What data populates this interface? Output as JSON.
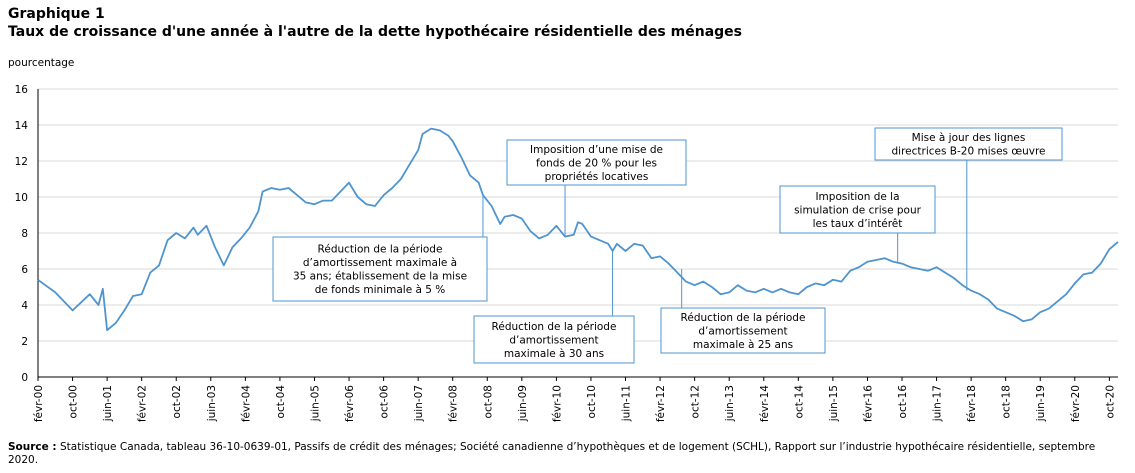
{
  "header": {
    "graph_no": "Graphique 1",
    "title": "Taux de croissance d'une année à l'autre de la dette hypothécaire résidentielle des ménages",
    "y_axis_label": "pourcentage"
  },
  "source": {
    "label": "Source :",
    "text": "Statistique Canada, tableau 36-10-0639-01, Passifs de crédit des ménages; Société canadienne d’hypothèques et de logement (SCHL), Rapport sur l’industrie hypothécaire résidentielle, septembre 2020."
  },
  "chart_data": {
    "type": "line",
    "title": "Taux de croissance d'une année à l'autre de la dette hypothécaire résidentielle des ménages",
    "ylabel": "pourcentage",
    "ylim": [
      0,
      16
    ],
    "yticks": [
      0,
      2,
      4,
      6,
      8,
      10,
      12,
      14,
      16
    ],
    "grid": true,
    "line_color": "#4e94cf",
    "x_tick_labels": [
      "févr-00",
      "oct-00",
      "juin-01",
      "févr-02",
      "oct-02",
      "juin-03",
      "févr-04",
      "oct-04",
      "juin-05",
      "févr-06",
      "oct-06",
      "juin-07",
      "févr-08",
      "oct-08",
      "juin-09",
      "févr-10",
      "oct-10",
      "juin-11",
      "févr-12",
      "oct-12",
      "juin-13",
      "févr-14",
      "oct-14",
      "juin-15",
      "févr-16",
      "oct-16",
      "juin-17",
      "févr-18",
      "oct-18",
      "juin-19",
      "févr-20",
      "oct-20"
    ],
    "series": [
      {
        "points": [
          [
            "févr-00",
            5.4
          ],
          [
            "juin-00",
            4.7
          ],
          [
            "oct-00",
            3.7
          ],
          [
            "févr-01",
            4.6
          ],
          [
            "avr-01",
            4.0
          ],
          [
            "mai-01",
            4.9
          ],
          [
            "juin-01",
            2.6
          ],
          [
            "août-01",
            3.0
          ],
          [
            "oct-01",
            3.7
          ],
          [
            "déc-01",
            4.5
          ],
          [
            "févr-02",
            4.6
          ],
          [
            "avr-02",
            5.8
          ],
          [
            "juin-02",
            6.2
          ],
          [
            "août-02",
            7.6
          ],
          [
            "oct-02",
            8.0
          ],
          [
            "déc-02",
            7.7
          ],
          [
            "févr-03",
            8.3
          ],
          [
            "mars-03",
            7.9
          ],
          [
            "mai-03",
            8.4
          ],
          [
            "juil-03",
            7.2
          ],
          [
            "sept-03",
            6.2
          ],
          [
            "nov-03",
            7.2
          ],
          [
            "janv-04",
            7.7
          ],
          [
            "mars-04",
            8.3
          ],
          [
            "mai-04",
            9.2
          ],
          [
            "juin-04",
            10.3
          ],
          [
            "août-04",
            10.5
          ],
          [
            "oct-04",
            10.4
          ],
          [
            "déc-04",
            10.5
          ],
          [
            "févr-05",
            10.1
          ],
          [
            "avr-05",
            9.7
          ],
          [
            "juin-05",
            9.6
          ],
          [
            "août-05",
            9.8
          ],
          [
            "oct-05",
            9.8
          ],
          [
            "déc-05",
            10.3
          ],
          [
            "févr-06",
            10.8
          ],
          [
            "avr-06",
            10.0
          ],
          [
            "juin-06",
            9.6
          ],
          [
            "août-06",
            9.5
          ],
          [
            "oct-06",
            10.1
          ],
          [
            "déc-06",
            10.5
          ],
          [
            "févr-07",
            11.0
          ],
          [
            "avr-07",
            11.8
          ],
          [
            "juin-07",
            12.6
          ],
          [
            "juil-07",
            13.5
          ],
          [
            "sept-07",
            13.8
          ],
          [
            "nov-07",
            13.7
          ],
          [
            "janv-08",
            13.4
          ],
          [
            "févr-08",
            13.1
          ],
          [
            "avr-08",
            12.2
          ],
          [
            "juin-08",
            11.2
          ],
          [
            "août-08",
            10.8
          ],
          [
            "sept-08",
            10.1
          ],
          [
            "nov-08",
            9.5
          ],
          [
            "janv-09",
            8.5
          ],
          [
            "févr-09",
            8.9
          ],
          [
            "avr-09",
            9.0
          ],
          [
            "juin-09",
            8.8
          ],
          [
            "août-09",
            8.1
          ],
          [
            "oct-09",
            7.7
          ],
          [
            "déc-09",
            7.9
          ],
          [
            "févr-10",
            8.4
          ],
          [
            "avr-10",
            7.8
          ],
          [
            "juin-10",
            7.9
          ],
          [
            "juil-10",
            8.6
          ],
          [
            "août-10",
            8.5
          ],
          [
            "oct-10",
            7.8
          ],
          [
            "déc-10",
            7.6
          ],
          [
            "févr-11",
            7.4
          ],
          [
            "mars-11",
            7.0
          ],
          [
            "avr-11",
            7.4
          ],
          [
            "juin-11",
            7.0
          ],
          [
            "août-11",
            7.4
          ],
          [
            "oct-11",
            7.3
          ],
          [
            "déc-11",
            6.6
          ],
          [
            "févr-12",
            6.7
          ],
          [
            "avr-12",
            6.3
          ],
          [
            "juin-12",
            5.8
          ],
          [
            "août-12",
            5.3
          ],
          [
            "oct-12",
            5.1
          ],
          [
            "déc-12",
            5.3
          ],
          [
            "févr-13",
            5.0
          ],
          [
            "avr-13",
            4.6
          ],
          [
            "juin-13",
            4.7
          ],
          [
            "août-13",
            5.1
          ],
          [
            "oct-13",
            4.8
          ],
          [
            "déc-13",
            4.7
          ],
          [
            "févr-14",
            4.9
          ],
          [
            "avr-14",
            4.7
          ],
          [
            "juin-14",
            4.9
          ],
          [
            "août-14",
            4.7
          ],
          [
            "oct-14",
            4.6
          ],
          [
            "déc-14",
            5.0
          ],
          [
            "févr-15",
            5.2
          ],
          [
            "avr-15",
            5.1
          ],
          [
            "juin-15",
            5.4
          ],
          [
            "août-15",
            5.3
          ],
          [
            "oct-15",
            5.9
          ],
          [
            "déc-15",
            6.1
          ],
          [
            "févr-16",
            6.4
          ],
          [
            "avr-16",
            6.5
          ],
          [
            "juin-16",
            6.6
          ],
          [
            "août-16",
            6.4
          ],
          [
            "oct-16",
            6.3
          ],
          [
            "déc-16",
            6.1
          ],
          [
            "févr-17",
            6.0
          ],
          [
            "avr-17",
            5.9
          ],
          [
            "juin-17",
            6.1
          ],
          [
            "août-17",
            5.8
          ],
          [
            "oct-17",
            5.5
          ],
          [
            "déc-17",
            5.1
          ],
          [
            "févr-18",
            4.8
          ],
          [
            "avr-18",
            4.6
          ],
          [
            "juin-18",
            4.3
          ],
          [
            "août-18",
            3.8
          ],
          [
            "oct-18",
            3.6
          ],
          [
            "déc-18",
            3.4
          ],
          [
            "févr-19",
            3.1
          ],
          [
            "avr-19",
            3.2
          ],
          [
            "juin-19",
            3.6
          ],
          [
            "août-19",
            3.8
          ],
          [
            "oct-19",
            4.2
          ],
          [
            "déc-19",
            4.6
          ],
          [
            "févr-20",
            5.2
          ],
          [
            "avr-20",
            5.7
          ],
          [
            "juin-20",
            5.8
          ],
          [
            "août-20",
            6.3
          ],
          [
            "oct-20",
            7.1
          ],
          [
            "déc-20",
            7.5
          ]
        ]
      }
    ],
    "annotations": [
      {
        "text_lines": [
          "Réduction de la période",
          "d’amortissement maximale à",
          "35 ans; établissement de la mise",
          "de fonds minimale à 5 %"
        ],
        "date": "sept-08",
        "value": 10.1
      },
      {
        "text_lines": [
          "Imposition d’une mise de",
          "fonds de 20 % pour les",
          "propriétés locatives"
        ],
        "date": "avr-10",
        "value": 7.8
      },
      {
        "text_lines": [
          "Réduction de la période",
          "d’amortissement",
          "maximale à 30 ans"
        ],
        "date": "mars-11",
        "value": 7.0
      },
      {
        "text_lines": [
          "Réduction de la période",
          "d’amortissement",
          "maximale à 25 ans"
        ],
        "date": "juil-12",
        "value": 6.0
      },
      {
        "text_lines": [
          "Imposition de la",
          "simulation de crise pour",
          "les taux d’intérêt"
        ],
        "date": "sept-16",
        "value": 6.3
      },
      {
        "text_lines": [
          "Mise à jour des lignes",
          "directrices B-20 mises œuvre"
        ],
        "date": "janv-18",
        "value": 4.8
      }
    ]
  }
}
